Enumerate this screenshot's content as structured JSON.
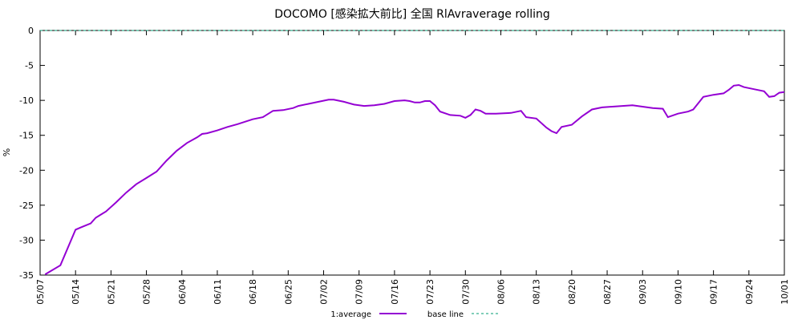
{
  "chart_data": {
    "type": "line",
    "title": "DOCOMO  [感染拡大前比] 全国 RlAvraverage rolling",
    "ylabel": "%",
    "xlim": [
      "05/07",
      "10/01"
    ],
    "xticks": [
      "05/07",
      "05/14",
      "05/21",
      "05/28",
      "06/04",
      "06/11",
      "06/18",
      "06/25",
      "07/02",
      "07/09",
      "07/16",
      "07/23",
      "07/30",
      "08/06",
      "08/13",
      "08/20",
      "08/27",
      "09/03",
      "09/10",
      "09/17",
      "09/24",
      "10/01"
    ],
    "ylim": [
      -35,
      0
    ],
    "yticks": [
      -35,
      -30,
      -25,
      -20,
      -15,
      -10,
      -5,
      0
    ],
    "grid": false,
    "legend": "bottom",
    "series": [
      {
        "name": "1:average",
        "color": "#9400d3",
        "dash": false,
        "x": [
          "05/08",
          "05/11",
          "05/14",
          "05/15",
          "05/17",
          "05/18",
          "05/20",
          "05/22",
          "05/24",
          "05/26",
          "05/28",
          "05/30",
          "06/01",
          "06/03",
          "06/05",
          "06/07",
          "06/08",
          "06/09",
          "06/11",
          "06/13",
          "06/15",
          "06/18",
          "06/20",
          "06/22",
          "06/24",
          "06/26",
          "06/27",
          "06/29",
          "07/01",
          "07/03",
          "07/04",
          "07/06",
          "07/08",
          "07/10",
          "07/12",
          "07/14",
          "07/16",
          "07/18",
          "07/19",
          "07/20",
          "07/21",
          "07/22",
          "07/23",
          "07/24",
          "07/25",
          "07/27",
          "07/29",
          "07/30",
          "07/31",
          "08/01",
          "08/02",
          "08/03",
          "08/05",
          "08/08",
          "08/10",
          "08/11",
          "08/13",
          "08/15",
          "08/16",
          "08/17",
          "08/18",
          "08/20",
          "08/22",
          "08/24",
          "08/26",
          "08/28",
          "08/30",
          "09/01",
          "09/03",
          "09/05",
          "09/07",
          "09/08",
          "09/10",
          "09/12",
          "09/13",
          "09/15",
          "09/17",
          "09/19",
          "09/20",
          "09/21",
          "09/22",
          "09/23",
          "09/25",
          "09/27",
          "09/28",
          "09/29",
          "09/30",
          "10/01"
        ],
        "values": [
          -34.9,
          -33.6,
          -28.5,
          -28.2,
          -27.6,
          -26.8,
          -25.9,
          -24.6,
          -23.2,
          -22.0,
          -21.1,
          -20.2,
          -18.6,
          -17.2,
          -16.1,
          -15.3,
          -14.8,
          -14.7,
          -14.3,
          -13.8,
          -13.4,
          -12.7,
          -12.4,
          -11.5,
          -11.4,
          -11.1,
          -10.8,
          -10.5,
          -10.2,
          -9.9,
          -9.9,
          -10.2,
          -10.6,
          -10.8,
          -10.7,
          -10.5,
          -10.1,
          -10.0,
          -10.1,
          -10.3,
          -10.3,
          -10.1,
          -10.1,
          -10.7,
          -11.6,
          -12.1,
          -12.2,
          -12.5,
          -12.1,
          -11.3,
          -11.5,
          -11.9,
          -11.9,
          -11.8,
          -11.5,
          -12.4,
          -12.6,
          -13.9,
          -14.4,
          -14.7,
          -13.8,
          -13.5,
          -12.3,
          -11.3,
          -11.0,
          -10.9,
          -10.8,
          -10.7,
          -10.9,
          -11.1,
          -11.2,
          -12.4,
          -11.9,
          -11.6,
          -11.3,
          -9.5,
          -9.2,
          -9.0,
          -8.5,
          -7.9,
          -7.8,
          -8.1,
          -8.4,
          -8.7,
          -9.5,
          -9.4,
          -8.9,
          -8.8
        ]
      },
      {
        "name": "base line",
        "color": "#009e73",
        "dash": true,
        "x": [
          "05/07",
          "10/01"
        ],
        "values": [
          0,
          0
        ]
      }
    ]
  }
}
